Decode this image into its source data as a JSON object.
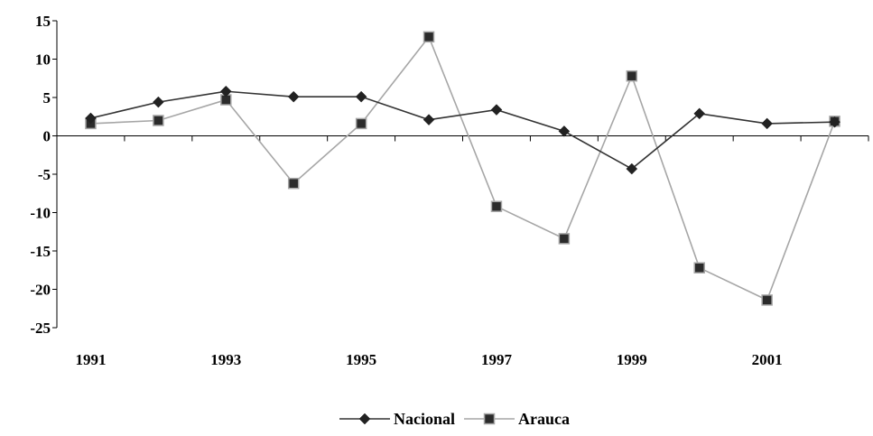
{
  "chart_data": {
    "type": "line",
    "x": [
      1991,
      1992,
      1993,
      1994,
      1995,
      1996,
      1997,
      1998,
      1999,
      2000,
      2001,
      2002
    ],
    "x_tick_labels": [
      "1991",
      "1993",
      "1995",
      "1997",
      "1999",
      "2001"
    ],
    "y_tick_labels": [
      "15",
      "10",
      "5",
      "0",
      "-5",
      "-10",
      "-15",
      "-20",
      "-25"
    ],
    "ylim": [
      -25,
      15
    ],
    "grid": false,
    "legend_position": "bottom",
    "series": [
      {
        "name": "Nacional",
        "color": "#333333",
        "marker": "diamond",
        "values": [
          2.3,
          4.4,
          5.8,
          5.1,
          5.1,
          2.1,
          3.4,
          0.6,
          -4.3,
          2.9,
          1.6,
          1.8
        ]
      },
      {
        "name": "Arauca",
        "color": "#a6a6a6",
        "marker": "square",
        "values": [
          1.6,
          2.0,
          4.7,
          -6.2,
          1.6,
          12.9,
          -9.2,
          -13.4,
          7.8,
          -17.2,
          -21.4,
          1.9
        ]
      }
    ]
  }
}
